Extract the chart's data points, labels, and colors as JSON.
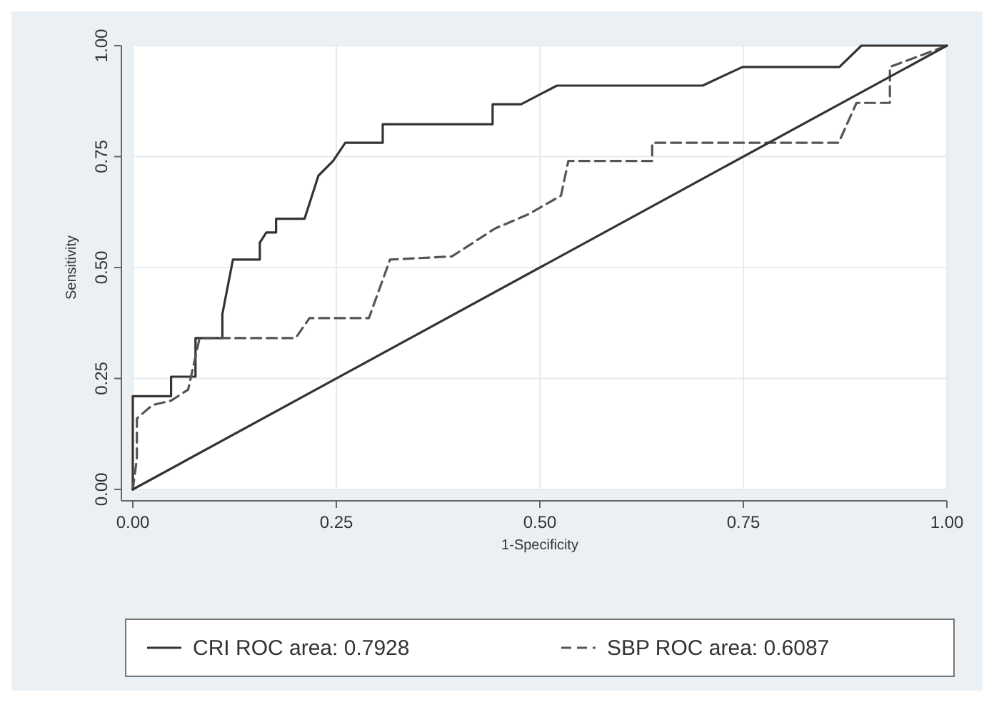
{
  "chart_data": {
    "type": "line",
    "xlabel": "1-Specificity",
    "ylabel": "Sensitivity",
    "xlim": [
      0,
      1
    ],
    "ylim": [
      0,
      1
    ],
    "xticks": [
      {
        "value": 0,
        "label": "0.00"
      },
      {
        "value": 0.25,
        "label": "0.25"
      },
      {
        "value": 0.5,
        "label": "0.50"
      },
      {
        "value": 0.75,
        "label": "0.75"
      },
      {
        "value": 1,
        "label": "1.00"
      }
    ],
    "yticks": [
      {
        "value": 0,
        "label": "0.00"
      },
      {
        "value": 0.25,
        "label": "0.25"
      },
      {
        "value": 0.5,
        "label": "0.50"
      },
      {
        "value": 0.75,
        "label": "0.75"
      },
      {
        "value": 1,
        "label": "1.00"
      }
    ],
    "grid": true,
    "legend": "bottom",
    "marker": "none",
    "series": [
      {
        "name": "CRI ROC area: 0.7928",
        "color": "#333333",
        "line_style": "solid",
        "x": [
          0,
          0,
          0.047,
          0.047,
          0.077,
          0.077,
          0.11,
          0.11,
          0.123,
          0.156,
          0.156,
          0.164,
          0.176,
          0.176,
          0.211,
          0.228,
          0.246,
          0.261,
          0.307,
          0.307,
          0.442,
          0.442,
          0.477,
          0.521,
          0.7,
          0.749,
          0.868,
          0.895,
          1
        ],
        "values": [
          0,
          0.21,
          0.21,
          0.254,
          0.254,
          0.341,
          0.341,
          0.395,
          0.518,
          0.518,
          0.556,
          0.579,
          0.579,
          0.61,
          0.61,
          0.707,
          0.74,
          0.781,
          0.781,
          0.823,
          0.823,
          0.868,
          0.868,
          0.91,
          0.91,
          0.952,
          0.952,
          1,
          1
        ]
      },
      {
        "name": "SBP ROC area: 0.6087",
        "color": "#555555",
        "line_style": "dashed",
        "x": [
          0,
          0.005,
          0.005,
          0.024,
          0.047,
          0.068,
          0.082,
          0.2,
          0.217,
          0.29,
          0.316,
          0.392,
          0.445,
          0.486,
          0.526,
          0.535,
          0.638,
          0.638,
          0.867,
          0.889,
          0.93,
          0.93,
          1
        ],
        "values": [
          0,
          0.07,
          0.16,
          0.19,
          0.2,
          0.225,
          0.341,
          0.341,
          0.386,
          0.386,
          0.518,
          0.525,
          0.588,
          0.62,
          0.662,
          0.74,
          0.74,
          0.781,
          0.781,
          0.871,
          0.871,
          0.952,
          1
        ]
      },
      {
        "color": "#333333",
        "line_style": "solid",
        "x": [
          0,
          1
        ],
        "values": [
          0,
          1
        ]
      }
    ]
  }
}
